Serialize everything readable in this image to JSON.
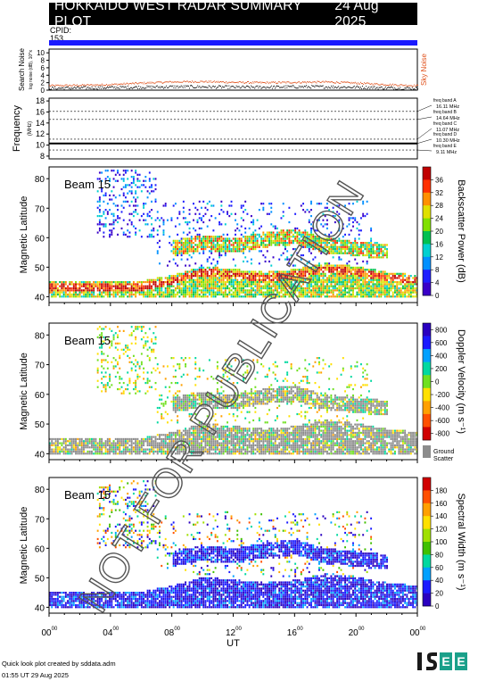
{
  "header": {
    "title": "HOKKAIDO WEST RADAR SUMMARY PLOT",
    "date": "24 Aug 2025",
    "cpid_label": "CPID:",
    "cpid_value": "153"
  },
  "panels": {
    "noise": {
      "ylabel": "Search Noise",
      "ylabel_sub": "log noise (dB), 10^x",
      "right_label": "Sky Noise",
      "yticks": [
        "0",
        "2",
        "4",
        "6",
        "8",
        "10"
      ]
    },
    "frequency": {
      "ylabel": "Frequency",
      "ylabel_unit": "(MHz)",
      "yticks": [
        "8",
        "10",
        "12",
        "14",
        "16",
        "18"
      ],
      "bands": [
        {
          "name": "freq band A",
          "freq": "16.11 MHz"
        },
        {
          "name": "freq band B",
          "freq": "14.64 MHz"
        },
        {
          "name": "freq band C",
          "freq": "11.07 MHz"
        },
        {
          "name": "freq band D",
          "freq": "10.30 MHz"
        },
        {
          "name": "freq band E",
          "freq": "9.11 MHz"
        }
      ]
    },
    "power": {
      "beam_label": "Beam 15",
      "ylabel": "Magnetic Latitude",
      "colorbar_label": "Backscatter Power (dB)",
      "colorbar_ticks": [
        "0",
        "4",
        "8",
        "12",
        "16",
        "20",
        "24",
        "28",
        "32",
        "36"
      ]
    },
    "velocity": {
      "beam_label": "Beam 15",
      "ylabel": "Magnetic Latitude",
      "colorbar_label": "Doppler Velocity (m s⁻¹)",
      "colorbar_ticks": [
        "800",
        "600",
        "400",
        "200",
        "0",
        "-200",
        "-400",
        "-600",
        "-800"
      ],
      "ground_label_1": "Ground",
      "ground_label_2": "Scatter"
    },
    "width": {
      "beam_label": "Beam 15",
      "ylabel": "Magnetic Latitude",
      "colorbar_label": "Spectral Width (m s⁻¹)",
      "colorbar_ticks": [
        "0",
        "20",
        "40",
        "60",
        "80",
        "100",
        "120",
        "140",
        "160",
        "180"
      ]
    }
  },
  "xaxis": {
    "ticks": [
      "00",
      "04",
      "08",
      "12",
      "16",
      "20",
      "00"
    ],
    "tick_sup": "00",
    "label": "UT"
  },
  "lat_ticks": [
    "40",
    "50",
    "60",
    "70",
    "80"
  ],
  "watermark": "NOT FOR PUBLICATION",
  "footer": {
    "line1": "Quick look plot created by sddata.adm",
    "line2": "01:55 UT 29 Aug 2025",
    "logo_text": "ISEE"
  },
  "colors": {
    "title_bg": "#000000",
    "cpid_bar": "#1a1aff",
    "sky_noise": "#e0501a",
    "ground_scatter": "#8c8c8c",
    "power_scale": [
      "#3a00c8",
      "#1e1eff",
      "#0090ff",
      "#00d0d0",
      "#00c050",
      "#80e000",
      "#e0e000",
      "#ff9000",
      "#ff3000",
      "#c00000"
    ],
    "velocity_scale": [
      "#2a00c0",
      "#1a1aff",
      "#00a0ff",
      "#00d8a0",
      "#70e020",
      "#ffe000",
      "#ffa000",
      "#ff5000",
      "#d00000"
    ],
    "width_scale": [
      "#2a00c0",
      "#1a1aff",
      "#00a0ff",
      "#00d8a0",
      "#40c000",
      "#a0e000",
      "#ffe000",
      "#ffa000",
      "#ff5000",
      "#d00000"
    ]
  },
  "chart_data": [
    {
      "type": "scatter",
      "title": "Search Noise",
      "xlabel": "UT",
      "ylabel": "Search Noise",
      "xlim": [
        0,
        24
      ],
      "ylim": [
        0,
        11
      ],
      "series": [
        {
          "name": "Sky Noise",
          "x": [
            0,
            2,
            4,
            6,
            8,
            10,
            12,
            14,
            16,
            18,
            20,
            22,
            24
          ],
          "values": [
            1.3,
            1.4,
            1.6,
            2.0,
            2.3,
            2.4,
            2.2,
            2.1,
            2.2,
            2.3,
            2.0,
            1.6,
            1.3
          ]
        },
        {
          "x": [
            0,
            2,
            4,
            6,
            8,
            10,
            12,
            14,
            16,
            18,
            20,
            22,
            24
          ],
          "values": [
            0.6,
            0.7,
            0.8,
            0.9,
            1.0,
            1.0,
            0.9,
            0.9,
            1.0,
            1.0,
            0.9,
            0.7,
            0.6
          ]
        }
      ]
    },
    {
      "type": "line",
      "title": "Frequency",
      "xlabel": "UT",
      "ylabel": "Frequency (MHz)",
      "xlim": [
        0,
        24
      ],
      "ylim": [
        7.5,
        18.5
      ],
      "series": [
        {
          "name": "freq band A",
          "values": [
            16.11
          ]
        },
        {
          "name": "freq band B",
          "values": [
            14.64
          ]
        },
        {
          "name": "freq band C",
          "values": [
            11.07
          ]
        },
        {
          "name": "freq band D",
          "values": [
            10.3
          ]
        },
        {
          "name": "freq band E",
          "values": [
            9.11
          ]
        }
      ]
    },
    {
      "type": "heatmap",
      "title": "Beam 15",
      "xlabel": "UT",
      "ylabel": "Magnetic Latitude",
      "zlabel": "Backscatter Power (dB)",
      "xlim": [
        0,
        24
      ],
      "ylim": [
        38,
        84
      ],
      "zlim": [
        0,
        36
      ],
      "band_lower": {
        "x": [
          0,
          2,
          4,
          6,
          8,
          10,
          12,
          14,
          16,
          18,
          20,
          22,
          24
        ],
        "y": [
          45,
          45,
          45,
          45,
          47,
          50,
          49,
          48,
          49,
          51,
          50,
          48,
          47
        ]
      },
      "band_upper": {
        "x": [
          8,
          10,
          12,
          14,
          16,
          18,
          20,
          22
        ],
        "y": [
          56,
          58,
          57,
          59,
          60,
          57,
          56,
          55
        ]
      }
    },
    {
      "type": "heatmap",
      "title": "Beam 15",
      "xlabel": "UT",
      "ylabel": "Magnetic Latitude",
      "zlabel": "Doppler Velocity (m s⁻¹)",
      "xlim": [
        0,
        24
      ],
      "ylim": [
        38,
        84
      ],
      "zlim": [
        -800,
        800
      ]
    },
    {
      "type": "heatmap",
      "title": "Beam 15",
      "xlabel": "UT",
      "ylabel": "Magnetic Latitude",
      "zlabel": "Spectral Width (m s⁻¹)",
      "xlim": [
        0,
        24
      ],
      "ylim": [
        38,
        84
      ],
      "zlim": [
        0,
        190
      ]
    }
  ]
}
